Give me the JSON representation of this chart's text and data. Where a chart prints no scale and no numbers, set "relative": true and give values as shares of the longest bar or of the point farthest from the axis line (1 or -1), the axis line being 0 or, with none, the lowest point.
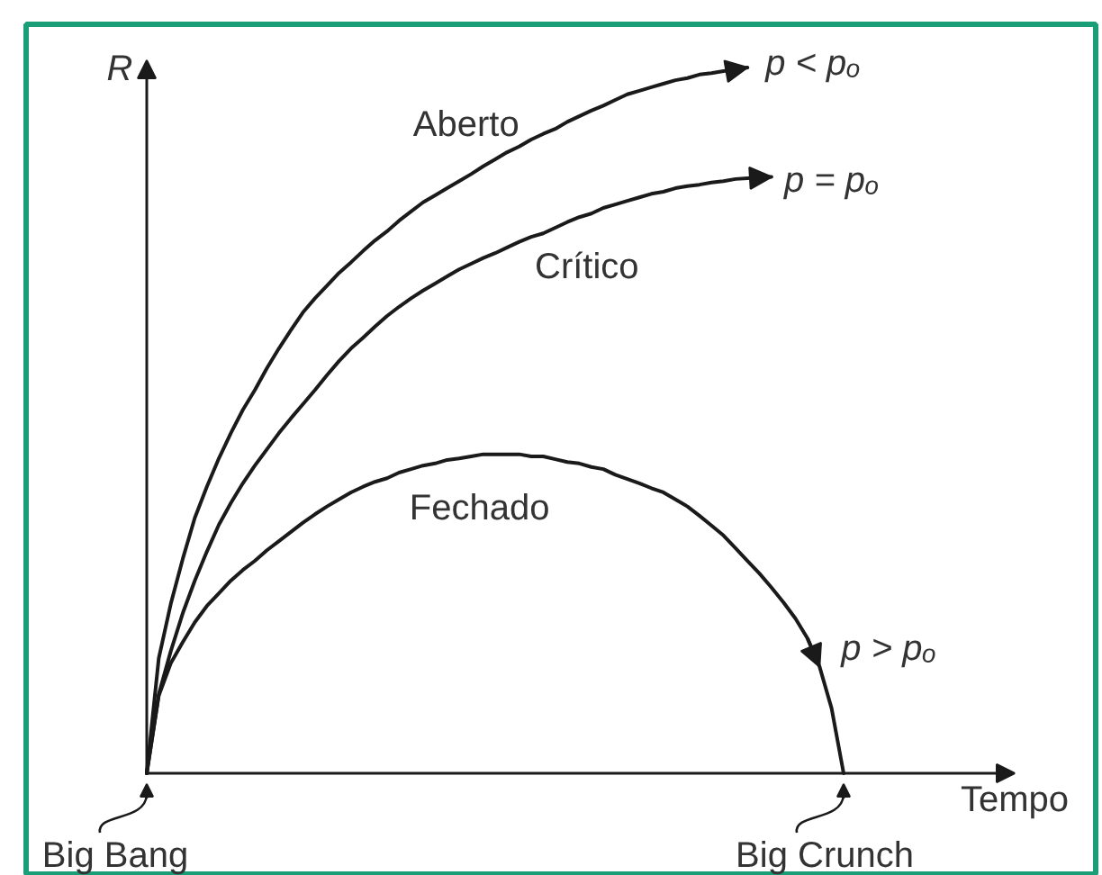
{
  "chart_data": {
    "type": "line",
    "relative": true,
    "xlabel": "Tempo",
    "ylabel": "R",
    "categories": [
      null,
      null,
      null,
      null,
      null,
      null,
      null,
      null,
      null,
      null,
      null,
      null,
      null,
      null,
      null,
      null,
      null,
      null,
      null,
      null,
      null,
      null,
      null,
      null,
      null,
      null,
      null,
      null,
      null,
      null,
      null,
      null,
      null,
      null,
      null,
      null,
      null,
      null,
      null,
      null,
      null,
      null,
      null,
      null,
      null,
      null,
      null,
      null,
      null,
      null,
      null,
      null,
      null,
      null,
      null,
      null,
      null,
      null,
      null
    ],
    "series": [
      {
        "name": "Aberto",
        "color": "#1a1a1a",
        "values": [
          0,
          0.163,
          0.24,
          0.304,
          0.362,
          0.406,
          0.446,
          0.482,
          0.515,
          0.543,
          0.574,
          0.602,
          0.628,
          0.653,
          0.673,
          0.691,
          0.709,
          0.724,
          0.74,
          0.755,
          0.768,
          0.783,
          0.796,
          0.809,
          0.819,
          0.829,
          0.839,
          0.849,
          0.86,
          0.87,
          0.88,
          0.888,
          0.898,
          0.906,
          0.913,
          0.923,
          0.931,
          0.939,
          0.946,
          0.954,
          0.962,
          0.967,
          0.972,
          0.977,
          0.982,
          0.985,
          0.99,
          0.992,
          0.995,
          0.997,
          1,
          null,
          null,
          null,
          null,
          null,
          null,
          null,
          null
        ]
      },
      {
        "name": "Crítico",
        "color": "#1a1a1a",
        "values": [
          0,
          0.112,
          0.173,
          0.227,
          0.273,
          0.314,
          0.352,
          0.383,
          0.411,
          0.436,
          0.459,
          0.482,
          0.503,
          0.523,
          0.543,
          0.564,
          0.584,
          0.602,
          0.617,
          0.633,
          0.648,
          0.661,
          0.673,
          0.684,
          0.694,
          0.704,
          0.714,
          0.722,
          0.73,
          0.737,
          0.745,
          0.753,
          0.76,
          0.765,
          0.773,
          0.781,
          0.788,
          0.793,
          0.801,
          0.806,
          0.811,
          0.816,
          0.821,
          0.824,
          0.829,
          0.832,
          0.834,
          0.837,
          0.839,
          0.842,
          0.843,
          0.844,
          0.845,
          null,
          null,
          null,
          null,
          null,
          null
        ]
      },
      {
        "name": "Fechado",
        "color": "#1a1a1a",
        "values": [
          0,
          0.11,
          0.156,
          0.186,
          0.214,
          0.237,
          0.255,
          0.273,
          0.288,
          0.301,
          0.316,
          0.329,
          0.342,
          0.355,
          0.367,
          0.378,
          0.388,
          0.398,
          0.406,
          0.413,
          0.418,
          0.426,
          0.431,
          0.436,
          0.439,
          0.444,
          0.446,
          0.449,
          0.452,
          0.452,
          0.452,
          0.452,
          0.449,
          0.449,
          0.445,
          0.441,
          0.439,
          0.434,
          0.431,
          0.423,
          0.417,
          0.411,
          0.404,
          0.398,
          0.388,
          0.378,
          0.365,
          0.351,
          0.337,
          0.319,
          0.301,
          0.283,
          0.263,
          0.242,
          0.219,
          0.191,
          0.151,
          0.092,
          0
        ]
      }
    ],
    "annotations": [
      "p < pₒ",
      "p = pₒ",
      "p > pₒ",
      "Big Bang",
      "Big Crunch"
    ]
  }
}
